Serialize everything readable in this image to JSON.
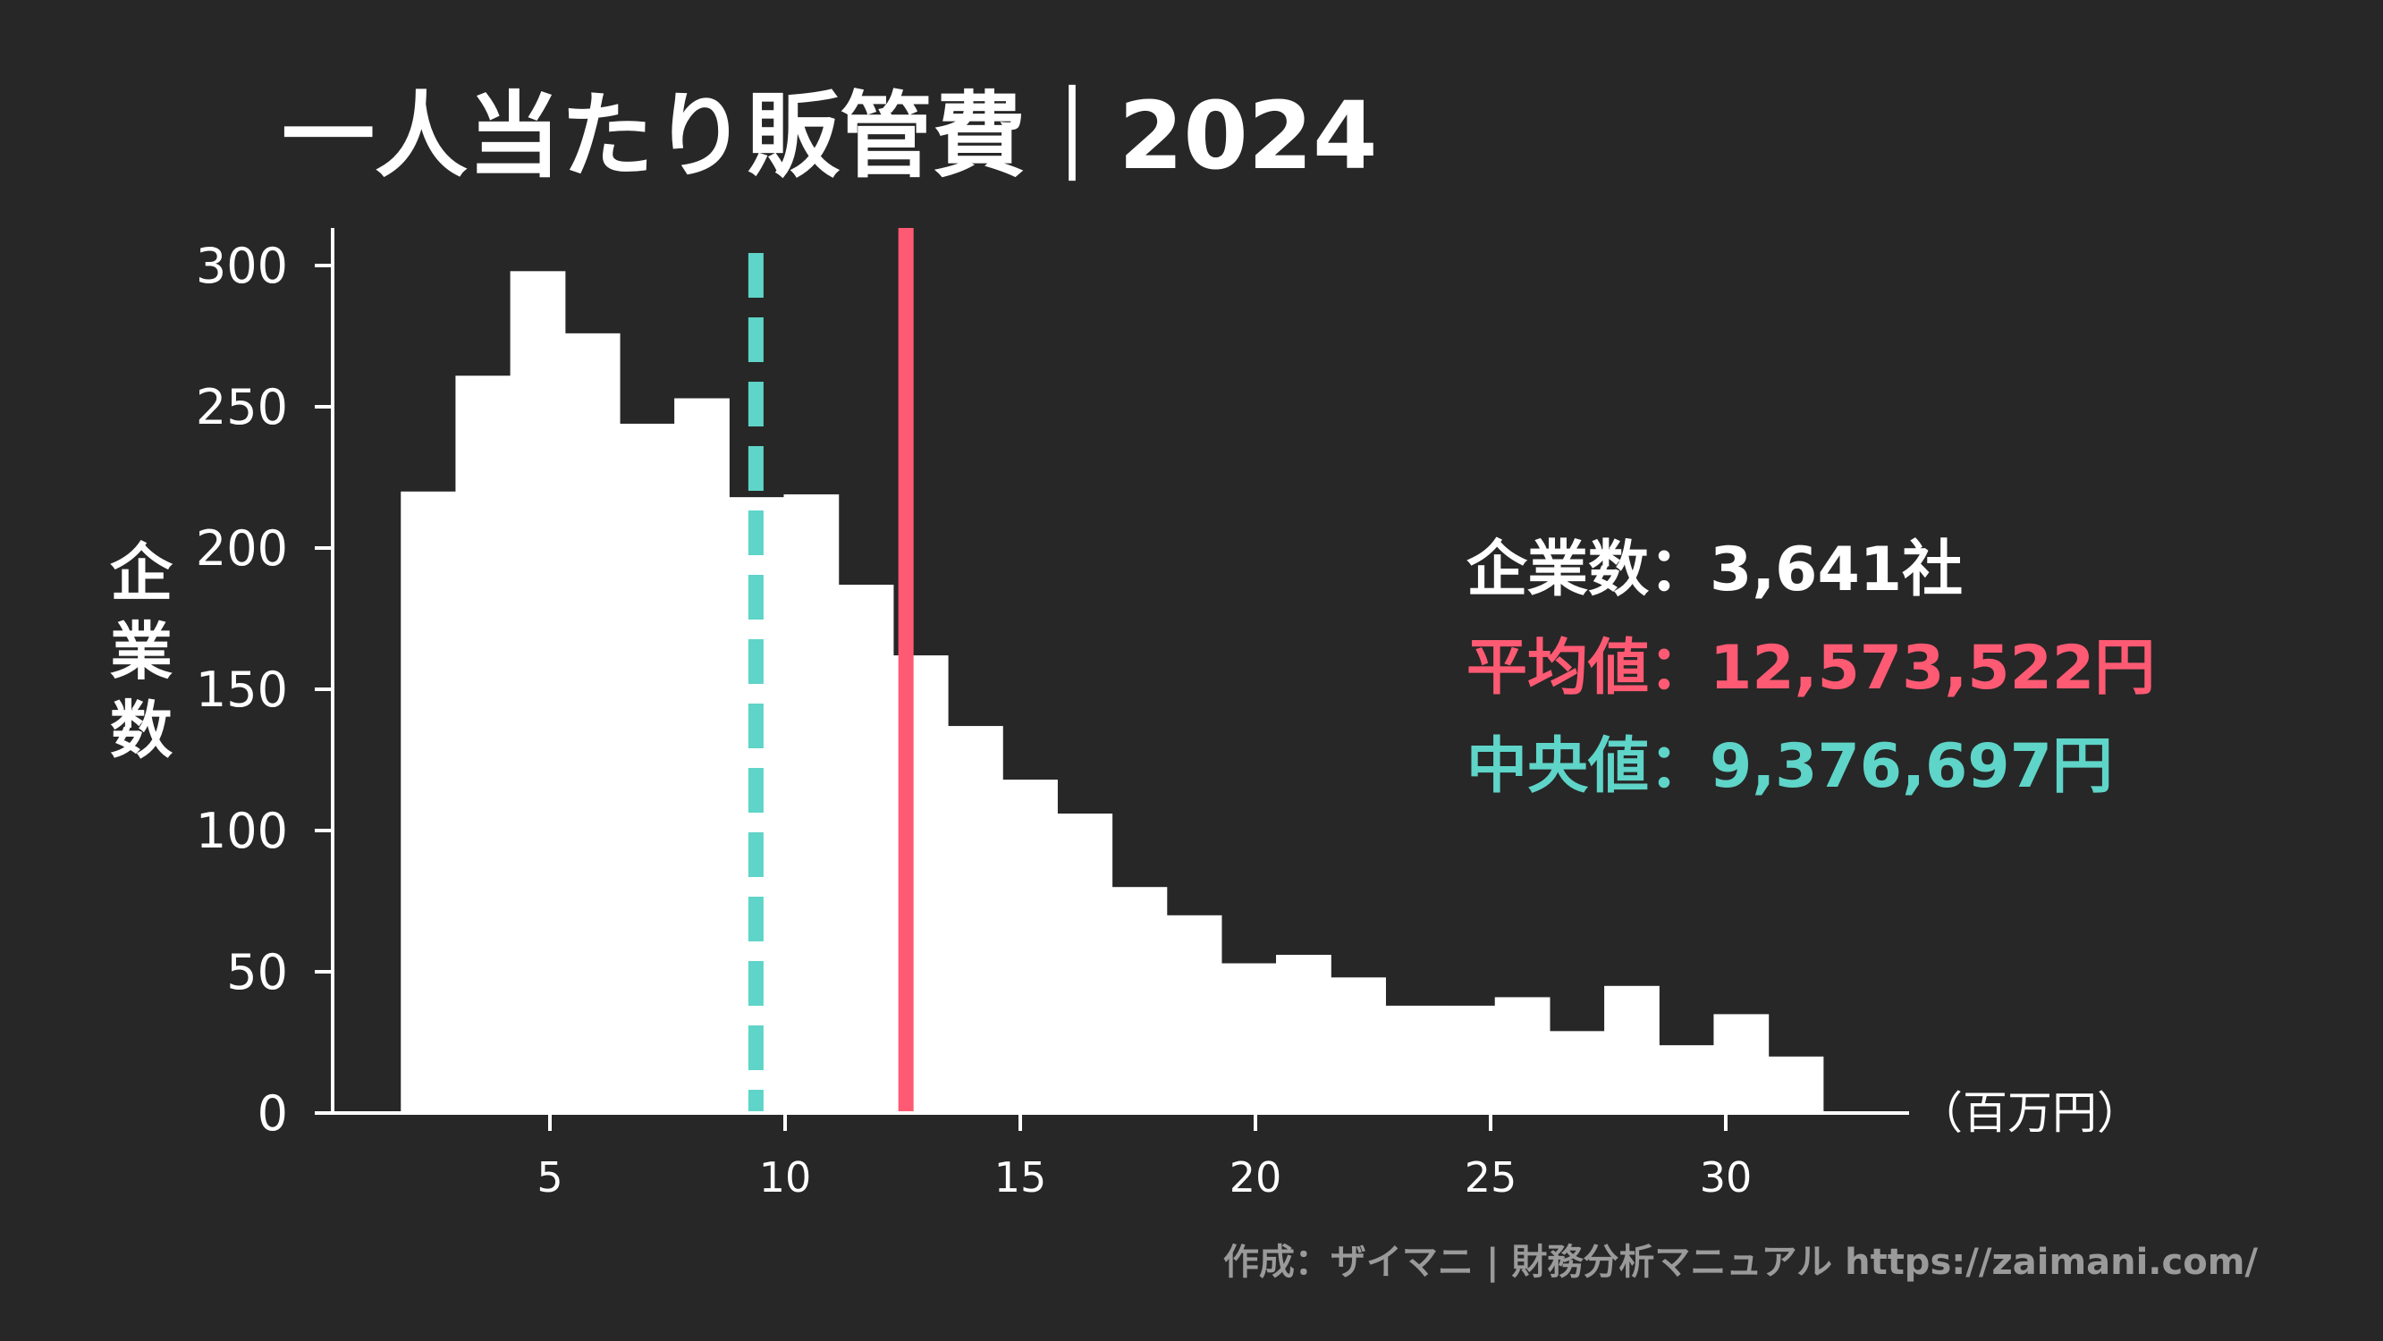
{
  "chart_data": {
    "type": "bar",
    "title": "一人当たり販管費｜2024",
    "ylabel": "企業数",
    "xunit": "（百万円）",
    "ylim": [
      0,
      300
    ],
    "xlim": [
      0.5,
      34
    ],
    "xticks": [
      5,
      10,
      15,
      20,
      25,
      30
    ],
    "yticks": [
      0,
      50,
      100,
      150,
      200,
      250,
      300
    ],
    "bin_start": 1.83,
    "bin_width": 1.163,
    "values": [
      220,
      261,
      298,
      276,
      244,
      253,
      218,
      219,
      187,
      162,
      137,
      118,
      106,
      80,
      70,
      53,
      56,
      48,
      38,
      38,
      41,
      29,
      45,
      24,
      35,
      20
    ],
    "mean_line": {
      "value": 12.57,
      "color": "#ff5a73"
    },
    "median_line": {
      "value": 9.38,
      "color": "#5fd4c8"
    },
    "grid": false,
    "legend": "none"
  },
  "stats": {
    "count": {
      "label": "企業数：",
      "value": "3,641社",
      "color": "#ffffff"
    },
    "mean": {
      "label": "平均値：",
      "value": "12,573,522円",
      "color": "#ff5a73"
    },
    "median": {
      "label": "中央値：",
      "value": "9,376,697円",
      "color": "#5fd4c8"
    }
  },
  "credit": "作成：ザイマニ | 財務分析マニュアル https://zaimani.com/"
}
